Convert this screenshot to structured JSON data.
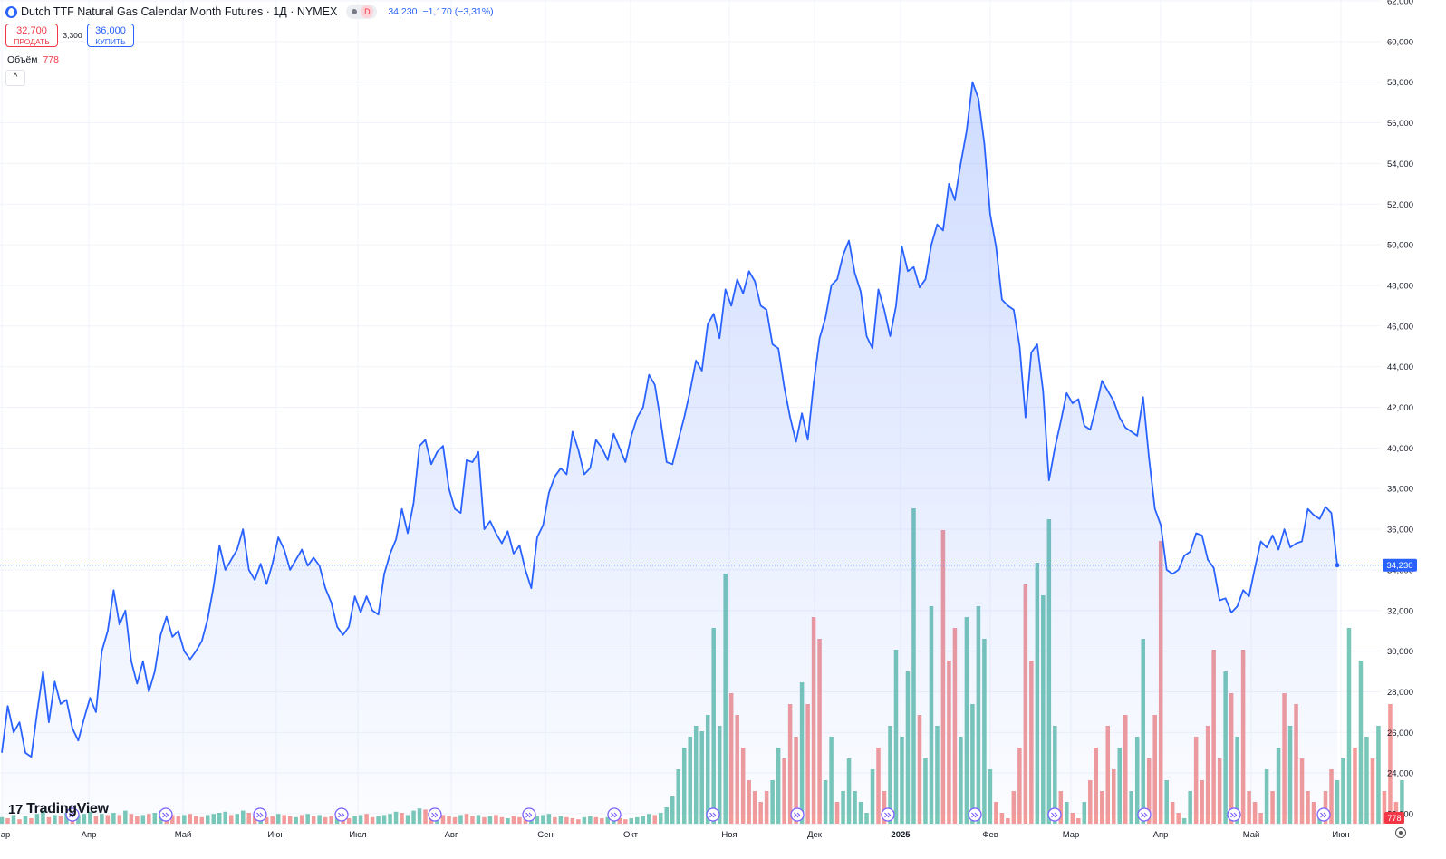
{
  "header": {
    "title": "Dutch TTF Natural Gas Calendar Month Futures · 1Д · NYMEX",
    "status_letter": "D",
    "last_price": "34,230",
    "change": "−1,170 (−3,31%)"
  },
  "trade": {
    "sell_price": "32,700",
    "sell_label": "ПРОДАТЬ",
    "spread": "3,300",
    "buy_price": "36,000",
    "buy_label": "КУПИТЬ"
  },
  "volume_legend": {
    "label": "Объём",
    "value": "778"
  },
  "collapse_label": "^",
  "logo": {
    "mark": "17",
    "name": "TradingView"
  },
  "colors": {
    "line": "#2962ff",
    "fill": "#2962ff",
    "vol_up": "#79c7b8",
    "vol_down": "#f29b9b",
    "grid": "#f0f3fa"
  },
  "chart_data": {
    "type": "area",
    "title": "",
    "ylim": [
      22000,
      62000
    ],
    "y_ticks": [
      "22,000",
      "24,000",
      "26,000",
      "28,000",
      "30,000",
      "32,000",
      "34,000",
      "36,000",
      "38,000",
      "40,000",
      "42,000",
      "44,000",
      "46,000",
      "48,000",
      "50,000",
      "52,000",
      "54,000",
      "56,000",
      "58,000",
      "60,000",
      "62,000"
    ],
    "x_ticks": [
      "Мар",
      "Апр",
      "Май",
      "Июн",
      "Июл",
      "Авг",
      "Сен",
      "Окт",
      "Ноя",
      "Дек",
      "2025",
      "Фев",
      "Мар",
      "Апр",
      "Май",
      "Июн"
    ],
    "last_value_label": "34,230",
    "volume_label": "778",
    "series": [
      {
        "values": [
          25000,
          27300,
          26000,
          26500,
          25000,
          24800,
          27000,
          29000,
          26500,
          28500,
          27400,
          27600,
          26200,
          25600,
          26700,
          27700,
          27000,
          30000,
          31000,
          33000,
          31300,
          32000,
          29500,
          28400,
          29500,
          28000,
          29000,
          30800,
          31700,
          30700,
          31000,
          30000,
          29600,
          30000,
          30500,
          31600,
          33200,
          35200,
          34000,
          34500,
          35000,
          36000,
          34000,
          33500,
          34300,
          33300,
          34300,
          35600,
          35000,
          34000,
          34500,
          35000,
          34200,
          34600,
          34200,
          33100,
          32400,
          31200,
          30800,
          31200,
          32700,
          31900,
          32700,
          32000,
          31800,
          33800,
          34800,
          35500,
          37000,
          35800,
          37300,
          40100,
          40400,
          39200,
          39800,
          40100,
          38000,
          37000,
          36800,
          39400,
          39300,
          39800,
          36000,
          36400,
          35800,
          35300,
          35900,
          34800,
          35200,
          34000,
          33100,
          35600,
          36200,
          37800,
          38600,
          39000,
          38700,
          40800,
          39900,
          38700,
          39000,
          40400,
          40000,
          39400,
          40700,
          40000,
          39300,
          40600,
          41500,
          42000,
          43600,
          43100,
          41300,
          39300,
          39200,
          40400,
          41500,
          42800,
          44300,
          43800,
          46100,
          46600,
          45400,
          47800,
          47000,
          48300,
          47600,
          48700,
          48200,
          47000,
          46800,
          45100,
          44900,
          43000,
          41500,
          40300,
          41700,
          40400,
          43200,
          45400,
          46400,
          48000,
          48300,
          49500,
          50200,
          48600,
          47700,
          45500,
          44900,
          47800,
          46800,
          45500,
          47000,
          49900,
          48700,
          48900,
          47900,
          48300,
          50000,
          51000,
          50700,
          53000,
          52200,
          54000,
          55600,
          58000,
          57200,
          55000,
          51500,
          49900,
          47300,
          47000,
          46800,
          45000,
          41500,
          44700,
          45100,
          42800,
          38400,
          40000,
          41300,
          42700,
          42200,
          42400,
          41100,
          40900,
          42000,
          43300,
          42800,
          42300,
          41500,
          41000,
          40800,
          40600,
          42500,
          39500,
          37000,
          36200,
          34000,
          33800,
          34000,
          34700,
          34900,
          35800,
          35700,
          34500,
          34100,
          32500,
          32600,
          31900,
          32200,
          33000,
          32700,
          34100,
          35400,
          35100,
          35700,
          35000,
          36000,
          35100,
          35300,
          35400,
          37000,
          36700,
          36500,
          37100,
          36800,
          34230
        ]
      }
    ],
    "volume": {
      "values": [
        60,
        50,
        80,
        40,
        70,
        50,
        90,
        120,
        60,
        80,
        70,
        100,
        60,
        80,
        90,
        110,
        70,
        90,
        80,
        100,
        80,
        120,
        90,
        70,
        80,
        90,
        100,
        120,
        100,
        80,
        70,
        80,
        90,
        70,
        60,
        80,
        90,
        100,
        110,
        80,
        90,
        120,
        100,
        70,
        80,
        60,
        70,
        90,
        80,
        70,
        60,
        80,
        90,
        70,
        80,
        60,
        70,
        80,
        60,
        50,
        70,
        80,
        90,
        60,
        70,
        80,
        90,
        110,
        100,
        80,
        120,
        140,
        130,
        100,
        90,
        80,
        70,
        60,
        80,
        90,
        70,
        80,
        60,
        70,
        80,
        60,
        50,
        70,
        60,
        50,
        60,
        70,
        80,
        90,
        60,
        70,
        60,
        50,
        40,
        60,
        70,
        60,
        50,
        60,
        70,
        50,
        40,
        50,
        60,
        70,
        90,
        80,
        100,
        150,
        250,
        500,
        700,
        800,
        900,
        850,
        1000,
        1800,
        900,
        2300,
        1200,
        1000,
        700,
        400,
        300,
        200,
        300,
        400,
        700,
        600,
        1100,
        800,
        1300,
        1100,
        1900,
        1700,
        400,
        800,
        200,
        300,
        600,
        300,
        200,
        100,
        500,
        700,
        300,
        900,
        1600,
        800,
        1400,
        2900,
        1000,
        600,
        2000,
        900,
        2700,
        1500,
        1800,
        800,
        1900,
        1100,
        2000,
        1700,
        500,
        200,
        100,
        50,
        300,
        700,
        2200,
        1500,
        2400,
        2100,
        2800,
        900,
        300,
        200,
        100,
        50,
        200,
        400,
        700,
        300,
        900,
        500,
        700,
        1000,
        300,
        800,
        1700,
        600,
        1000,
        2600,
        400,
        200,
        100,
        50,
        300,
        800,
        400,
        900,
        1600,
        600,
        1400,
        1200,
        800,
        1600,
        300,
        200,
        100,
        500,
        300,
        700,
        1200,
        900,
        1100,
        600,
        300,
        200,
        100,
        300,
        500,
        400,
        600,
        1800,
        700,
        1500,
        800,
        600,
        900,
        300,
        1100,
        200,
        400
      ],
      "up": [
        true,
        false,
        true,
        false,
        true,
        false,
        true,
        true,
        false,
        true,
        false,
        true,
        false,
        true,
        true,
        true,
        false,
        true,
        false,
        true,
        false,
        true,
        false,
        false,
        true,
        false,
        true,
        true,
        false,
        false,
        false,
        true,
        false,
        false,
        false,
        true,
        true,
        true,
        true,
        false,
        true,
        true,
        false,
        false,
        true,
        false,
        false,
        true,
        false,
        false,
        true,
        false,
        true,
        false,
        true,
        false,
        false,
        true,
        false,
        false,
        true,
        true,
        false,
        false,
        true,
        true,
        true,
        true,
        false,
        true,
        true,
        true,
        false,
        false,
        true,
        false,
        false,
        false,
        true,
        false,
        false,
        true,
        false,
        true,
        false,
        false,
        true,
        false,
        false,
        false,
        true,
        true,
        true,
        true,
        false,
        true,
        false,
        false,
        false,
        true,
        true,
        false,
        false,
        true,
        true,
        false,
        false,
        true,
        true,
        true,
        true,
        false,
        true,
        true,
        true,
        true,
        true,
        true,
        true,
        true,
        true,
        true,
        true,
        true,
        false,
        false,
        false,
        false,
        false,
        false,
        false,
        true,
        true,
        false,
        false,
        false,
        true,
        false,
        false,
        false,
        true,
        true,
        false,
        true,
        true,
        true,
        true,
        true,
        true,
        false,
        false,
        true,
        true,
        true,
        true,
        true,
        false,
        true,
        true,
        true,
        false,
        false,
        false,
        true,
        true,
        true,
        true,
        true,
        true,
        false,
        false,
        false,
        false,
        false,
        false,
        false,
        true,
        true,
        true,
        true,
        false,
        true,
        false,
        false,
        true,
        false,
        false,
        false,
        false,
        false,
        true,
        false,
        true,
        true,
        true,
        false,
        false,
        false,
        true,
        false,
        false,
        true,
        true,
        false,
        false,
        false,
        false,
        false,
        true,
        false,
        true,
        false,
        false,
        false,
        false,
        true,
        false,
        true,
        false,
        true,
        false,
        false,
        false,
        false,
        true,
        false,
        false,
        true,
        true,
        true,
        false,
        true,
        true,
        false,
        true,
        false,
        false,
        false,
        true,
        true,
        false,
        false,
        true,
        false
      ]
    }
  }
}
